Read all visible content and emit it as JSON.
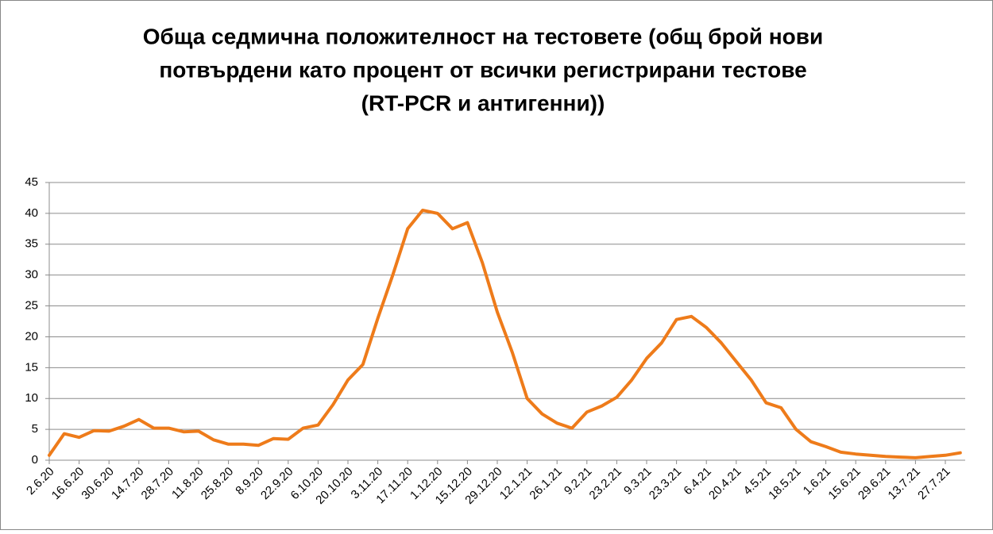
{
  "chart_data": {
    "type": "line",
    "title": [
      "Обща седмична положителност на тестовете (общ брой нови",
      "потвърдени като процент от всички регистрирани тестове",
      "(RT-PCR и антигенни))"
    ],
    "categories": [
      "2.6.20",
      null,
      "16.6.20",
      null,
      "30.6.20",
      null,
      "14.7.20",
      null,
      "28.7.20",
      null,
      "11.8.20",
      null,
      "25.8.20",
      null,
      "8.9.20",
      null,
      "22.9.20",
      null,
      "6.10.20",
      null,
      "20.10.20",
      null,
      "3.11.20",
      null,
      "17.11.20",
      null,
      "1.12.20",
      null,
      "15.12.20",
      null,
      "29.12.20",
      null,
      "12.1.21",
      null,
      "26.1.21",
      null,
      "9.2.21",
      null,
      "23.2.21",
      null,
      "9.3.21",
      null,
      "23.3.21",
      null,
      "6.4.21",
      null,
      "20.4.21",
      null,
      "4.5.21",
      null,
      "18.5.21",
      null,
      "1.6.21",
      null,
      "15.6.21",
      null,
      "29.6.21",
      null,
      "13.7.21",
      null,
      "27.7.21",
      null
    ],
    "series": [
      {
        "color": "#ee7b1a",
        "values": [
          0.8,
          4.3,
          3.7,
          4.8,
          4.7,
          5.5,
          6.6,
          5.2,
          5.2,
          4.6,
          4.7,
          3.3,
          2.6,
          2.6,
          2.4,
          3.5,
          3.4,
          5.2,
          5.7,
          9,
          13,
          15.5,
          23,
          30,
          37.5,
          40.5,
          40,
          37.5,
          38.5,
          32,
          24,
          17.5,
          10,
          7.5,
          6,
          5.2,
          7.8,
          8.8,
          10.2,
          13,
          16.5,
          19,
          22.8,
          23.3,
          21.5,
          19,
          16,
          13,
          9.3,
          8.5,
          5,
          3,
          2.2,
          1.3,
          1,
          0.8,
          0.6,
          0.5,
          0.4,
          0.6,
          0.8,
          1.2
        ]
      }
    ],
    "ylim": [
      0,
      45
    ],
    "yticks": [
      0,
      5,
      10,
      15,
      20,
      25,
      30,
      35,
      40,
      45
    ],
    "grid": true
  }
}
